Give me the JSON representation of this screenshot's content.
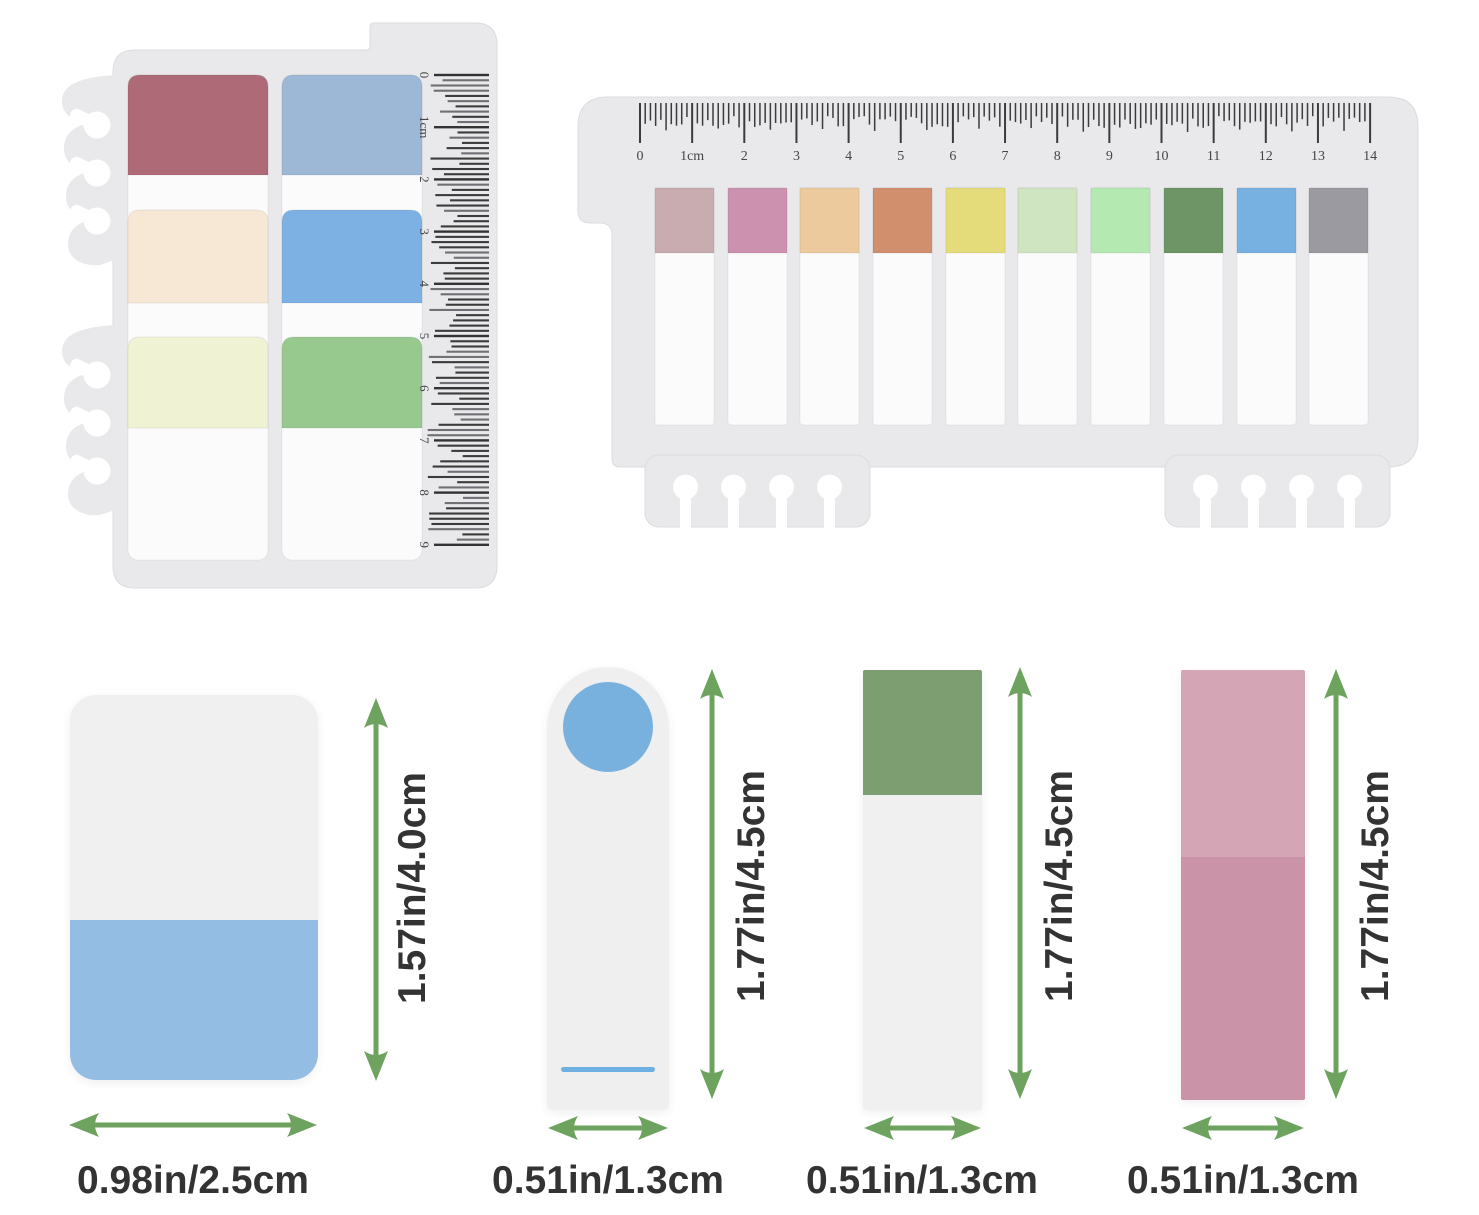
{
  "colors": {
    "page_bg": "#ffffff",
    "panel_bg": "#e9e9eb",
    "strip_white": "#fbfbfc",
    "ruler_ink": "#3b3b3b",
    "ruler_cm_ink": "#333333",
    "arrow_green": "#6da25f",
    "label_text": "#333333"
  },
  "left_panel": {
    "description": "small tab sheet with binder-ring edge and vertical cm barcode ruler",
    "ruler_labels": [
      "0",
      "1cm",
      "2",
      "3",
      "4",
      "5",
      "6",
      "7",
      "8",
      "9"
    ],
    "tab_columns": [
      {
        "tabs": [
          {
            "color": "#ae6b77"
          },
          {
            "color": "#f7e8d5"
          },
          {
            "color": "#f0f3d3"
          }
        ]
      },
      {
        "tabs": [
          {
            "color": "#9cb8d6"
          },
          {
            "color": "#7db1e4"
          },
          {
            "color": "#97c98f"
          }
        ]
      }
    ]
  },
  "right_panel": {
    "description": "wide tab sheet with horizontal cm ruler and ten colored index tabs",
    "ruler_labels": [
      "0",
      "1cm",
      "2",
      "3",
      "4",
      "5",
      "6",
      "7",
      "8",
      "9",
      "10",
      "11",
      "12",
      "13",
      "14"
    ],
    "tab_colors": [
      "#c8acb0",
      "#cc91ae",
      "#ecca9e",
      "#d28f6e",
      "#e4db7a",
      "#cfe5c2",
      "#b5e9b2",
      "#6d9566",
      "#76b1e1",
      "#9b9aa0"
    ]
  },
  "size_diagrams": [
    {
      "id": "large-tab",
      "height_label": "1.57in/4.0cm",
      "width_label": "0.98in/2.5cm",
      "body_color": "#f0f0f1",
      "accent_color": "#93bde3"
    },
    {
      "id": "round-top-strip",
      "height_label": "1.77in/4.5cm",
      "width_label": "0.51in/1.3cm",
      "body_color": "#efefef",
      "accent_color": "#79b1de",
      "line_color": "#6fb0e2"
    },
    {
      "id": "green-top-strip",
      "height_label": "1.77in/4.5cm",
      "width_label": "0.51in/1.3cm",
      "body_color": "#f0f0f0",
      "accent_color": "#7d9e71"
    },
    {
      "id": "pink-strip",
      "height_label": "1.77in/4.5cm",
      "width_label": "0.51in/1.3cm",
      "body_color": "#d4a5b5",
      "accent_color": "#cb93a7"
    }
  ]
}
